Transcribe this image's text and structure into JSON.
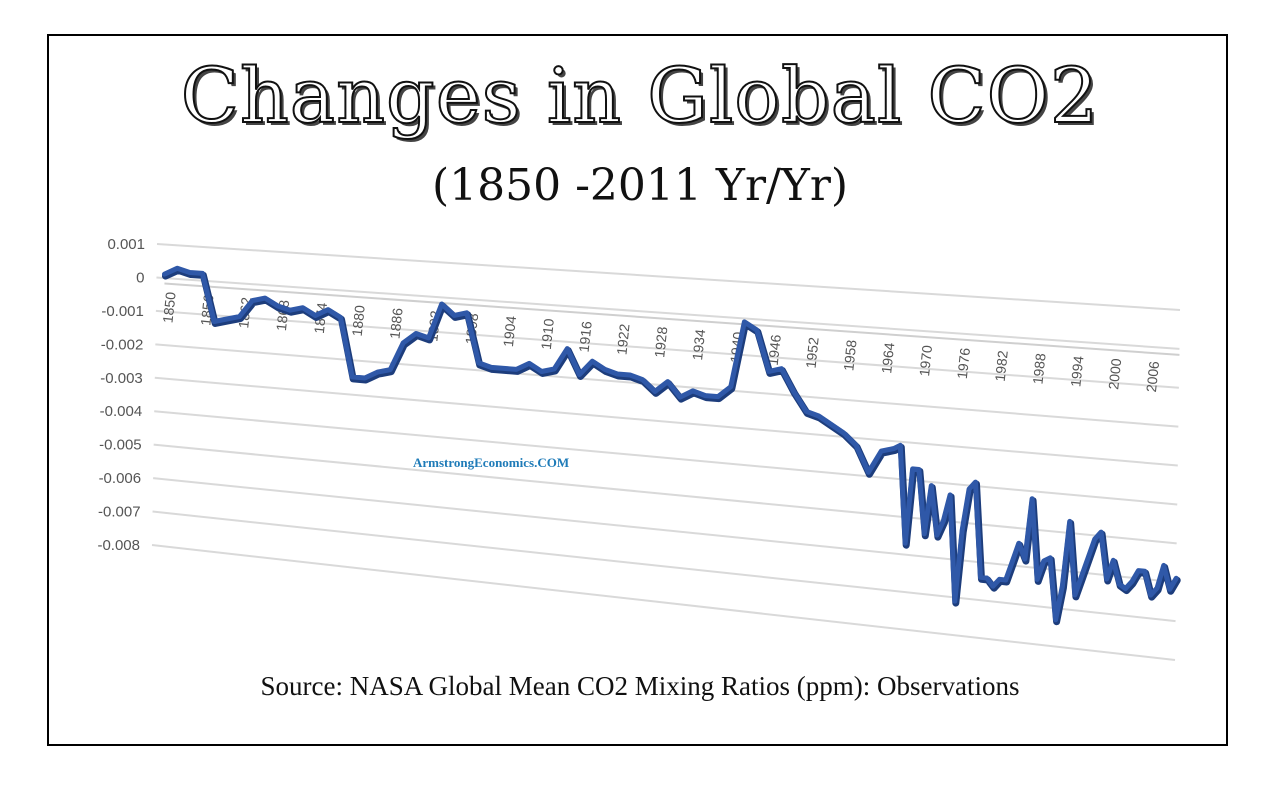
{
  "title": "Changes in Global CO2",
  "subtitle": "(1850 -2011 Yr/Yr)",
  "watermark": "ArmstrongEconomics.COM",
  "source": "Source: NASA Global Mean CO2 Mixing Ratios (ppm): Observations",
  "colors": {
    "line": "#2f58a8",
    "grid": "#d9d9d9",
    "axis_text": "#555555"
  },
  "chart_data": {
    "type": "line",
    "view": "3d-perspective",
    "title": "Changes in Global CO2",
    "subtitle": "(1850 -2011 Yr/Yr)",
    "xlabel": "",
    "ylabel": "",
    "ylim": [
      -0.008,
      0.001
    ],
    "yticks": [
      "0.001",
      "0",
      "-0.001",
      "-0.002",
      "-0.003",
      "-0.004",
      "-0.005",
      "-0.006",
      "-0.007",
      "-0.008"
    ],
    "xticks": [
      "1850",
      "1856",
      "1862",
      "1868",
      "1874",
      "1880",
      "1886",
      "1892",
      "1898",
      "1904",
      "1910",
      "1916",
      "1922",
      "1928",
      "1934",
      "1940",
      "1946",
      "1952",
      "1958",
      "1964",
      "1970",
      "1976",
      "1982",
      "1988",
      "1994",
      "2000",
      "2006"
    ],
    "grid": true,
    "legend": "none",
    "series": [
      {
        "name": "",
        "x": [
          1850,
          1852,
          1854,
          1856,
          1858,
          1860,
          1862,
          1864,
          1866,
          1868,
          1870,
          1872,
          1874,
          1876,
          1878,
          1880,
          1882,
          1884,
          1886,
          1888,
          1890,
          1892,
          1894,
          1896,
          1898,
          1900,
          1902,
          1904,
          1906,
          1908,
          1910,
          1912,
          1914,
          1916,
          1918,
          1920,
          1922,
          1924,
          1926,
          1928,
          1930,
          1932,
          1934,
          1936,
          1938,
          1940,
          1942,
          1944,
          1946,
          1948,
          1950,
          1952,
          1954,
          1956,
          1958,
          1960,
          1962,
          1964,
          1966,
          1967,
          1968,
          1969,
          1970,
          1971,
          1972,
          1973,
          1974,
          1975,
          1976,
          1977,
          1978,
          1979,
          1980,
          1981,
          1982,
          1983,
          1984,
          1985,
          1986,
          1987,
          1988,
          1989,
          1990,
          1991,
          1992,
          1993,
          1994,
          1995,
          1996,
          1997,
          1998,
          1999,
          2000,
          2001,
          2002,
          2003,
          2004,
          2005,
          2006,
          2007,
          2008,
          2009,
          2010,
          2011
        ],
        "y": [
          0.0001,
          0.0003,
          0.0002,
          0.0002,
          -0.0012,
          -0.0011,
          -0.001,
          -0.0005,
          -0.0004,
          -0.0006,
          -0.0007,
          -0.0006,
          -0.0008,
          -0.0006,
          -0.0008,
          -0.0025,
          -0.0025,
          -0.0023,
          -0.0022,
          -0.0014,
          -0.0011,
          -0.0012,
          -0.0002,
          -0.0005,
          -0.0004,
          -0.0018,
          -0.0019,
          -0.0019,
          -0.0019,
          -0.0017,
          -0.0019,
          -0.0018,
          -0.0012,
          -0.0019,
          -0.0015,
          -0.0017,
          -0.0018,
          -0.0018,
          -0.0019,
          -0.0022,
          -0.0019,
          -0.0023,
          -0.0021,
          -0.0022,
          -0.0022,
          -0.0019,
          -0.0001,
          -0.0003,
          -0.0014,
          -0.0013,
          -0.0019,
          -0.0024,
          -0.0025,
          -0.0027,
          -0.0029,
          -0.0032,
          -0.0039,
          -0.0033,
          -0.0032,
          -0.0031,
          -0.0057,
          -0.0037,
          -0.0037,
          -0.0054,
          -0.0041,
          -0.0054,
          -0.005,
          -0.0043,
          -0.0071,
          -0.0052,
          -0.0041,
          -0.0039,
          -0.0064,
          -0.0064,
          -0.0066,
          -0.0064,
          -0.0064,
          -0.0059,
          -0.0054,
          -0.0058,
          -0.0042,
          -0.0063,
          -0.0058,
          -0.0057,
          -0.0073,
          -0.0064,
          -0.0047,
          -0.0066,
          -0.0061,
          -0.0056,
          -0.0051,
          -0.0049,
          -0.0061,
          -0.0056,
          -0.0062,
          -0.0063,
          -0.0061,
          -0.0058,
          -0.0058,
          -0.0064,
          -0.0062,
          -0.0056,
          -0.0062,
          -0.0059
        ]
      }
    ]
  }
}
